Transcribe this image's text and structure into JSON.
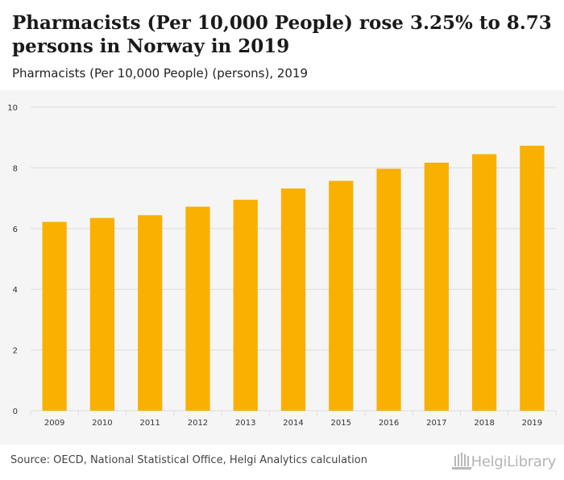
{
  "header": {
    "title": "Pharmacists (Per 10,000 People) rose 3.25% to 8.73 persons in Norway in 2019",
    "subtitle": "Pharmacists (Per 10,000 People) (persons), 2019"
  },
  "footer": {
    "source": "Source: OECD, National Statistical Office, Helgi Analytics calculation",
    "logo_text": "HelgiLibrary",
    "logo_icon": "library-building-icon"
  },
  "colors": {
    "bar": "#f9b000",
    "grid": "#dddddd",
    "axis_text": "#333333",
    "chart_bg": "#f5f5f5"
  },
  "chart_data": {
    "type": "bar",
    "categories": [
      "2009",
      "2010",
      "2011",
      "2012",
      "2013",
      "2014",
      "2015",
      "2016",
      "2017",
      "2018",
      "2019"
    ],
    "values": [
      6.22,
      6.35,
      6.44,
      6.72,
      6.95,
      7.32,
      7.57,
      7.97,
      8.17,
      8.45,
      8.73
    ],
    "ylim": [
      0,
      10
    ],
    "yticks": [
      0,
      2,
      4,
      6,
      8,
      10
    ],
    "xlabel": "",
    "ylabel": "",
    "grid": true
  }
}
